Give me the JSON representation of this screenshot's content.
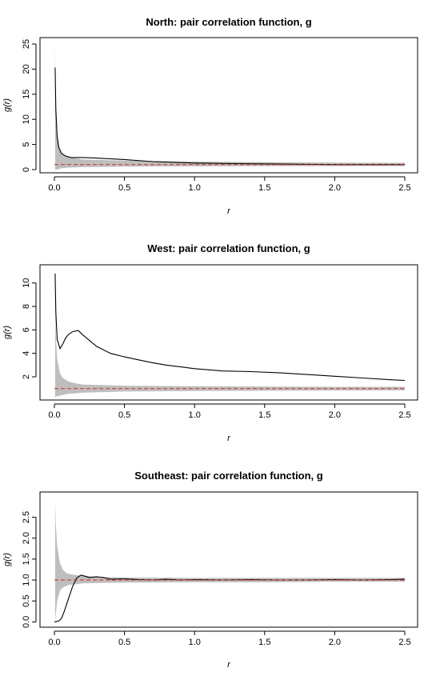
{
  "chart_data": [
    {
      "type": "line",
      "title": "North: pair correlation function, g",
      "xlabel": "r",
      "ylabel": "g(r)",
      "xlim": [
        0,
        2.5
      ],
      "ylim": [
        0,
        25
      ],
      "xticks": [
        0,
        0.5,
        1,
        1.5,
        2,
        2.5
      ],
      "xtick_labels": [
        "0.0",
        "0.5",
        "1.0",
        "1.5",
        "2.0",
        "2.5"
      ],
      "yticks": [
        0,
        5,
        10,
        15,
        20,
        25
      ],
      "ytick_labels": [
        "0",
        "5",
        "10",
        "15",
        "20",
        "25"
      ],
      "series": [
        {
          "role": "observed",
          "color": "#000000",
          "style": "solid",
          "x": [
            0.005,
            0.01,
            0.02,
            0.03,
            0.05,
            0.08,
            0.12,
            0.2,
            0.3,
            0.5,
            0.7,
            1.0,
            1.3,
            1.6,
            2.0,
            2.5
          ],
          "y": [
            20.3,
            12,
            6.5,
            4.5,
            3.2,
            2.7,
            2.4,
            2.4,
            2.3,
            2.0,
            1.6,
            1.3,
            1.2,
            1.1,
            1.0,
            1.0
          ]
        },
        {
          "role": "theoretical",
          "color": "#d22b2b",
          "style": "dashed",
          "x": [
            0,
            2.5
          ],
          "y": [
            1,
            1
          ]
        }
      ],
      "envelope": {
        "color": "#bebebe",
        "x": [
          0.005,
          0.01,
          0.02,
          0.04,
          0.06,
          0.1,
          0.2,
          0.5,
          1.0,
          1.5,
          2.0,
          2.5
        ],
        "upper": [
          24.5,
          12,
          7,
          4,
          3,
          2.5,
          2.0,
          1.8,
          1.6,
          1.5,
          1.4,
          1.35
        ],
        "lower": [
          0,
          0,
          0,
          0.2,
          0.3,
          0.4,
          0.5,
          0.6,
          0.65,
          0.7,
          0.7,
          0.7
        ]
      }
    },
    {
      "type": "line",
      "title": "West: pair correlation function, g",
      "xlabel": "r",
      "ylabel": "g(r)",
      "xlim": [
        0,
        2.5
      ],
      "ylim": [
        0.3,
        11
      ],
      "xticks": [
        0,
        0.5,
        1,
        1.5,
        2,
        2.5
      ],
      "xtick_labels": [
        "0.0",
        "0.5",
        "1.0",
        "1.5",
        "2.0",
        "2.5"
      ],
      "yticks": [
        2,
        4,
        6,
        8,
        10
      ],
      "ytick_labels": [
        "2",
        "4",
        "6",
        "8",
        "10"
      ],
      "series": [
        {
          "role": "observed",
          "color": "#000000",
          "style": "solid",
          "x": [
            0.005,
            0.01,
            0.02,
            0.04,
            0.06,
            0.08,
            0.1,
            0.13,
            0.17,
            0.2,
            0.25,
            0.3,
            0.4,
            0.5,
            0.6,
            0.7,
            0.8,
            0.9,
            1.0,
            1.2,
            1.4,
            1.6,
            1.8,
            2.0,
            2.2,
            2.4,
            2.5
          ],
          "y": [
            10.8,
            7.5,
            5.2,
            4.4,
            4.8,
            5.3,
            5.6,
            5.85,
            5.95,
            5.6,
            5.1,
            4.6,
            4.0,
            3.7,
            3.45,
            3.2,
            3.0,
            2.85,
            2.7,
            2.5,
            2.45,
            2.35,
            2.2,
            2.05,
            1.9,
            1.75,
            1.7
          ]
        },
        {
          "role": "theoretical",
          "color": "#d22b2b",
          "style": "dashed",
          "x": [
            0,
            2.5
          ],
          "y": [
            1,
            1
          ]
        }
      ],
      "envelope": {
        "color": "#bebebe",
        "x": [
          0.005,
          0.01,
          0.02,
          0.04,
          0.06,
          0.1,
          0.15,
          0.2,
          0.5,
          1.0,
          1.5,
          2.0,
          2.5
        ],
        "upper": [
          8.0,
          5.5,
          3.5,
          2.3,
          1.9,
          1.6,
          1.45,
          1.35,
          1.25,
          1.2,
          1.18,
          1.15,
          1.15
        ],
        "lower": [
          0.3,
          0.3,
          0.35,
          0.4,
          0.45,
          0.55,
          0.6,
          0.65,
          0.75,
          0.8,
          0.82,
          0.84,
          0.85
        ]
      }
    },
    {
      "type": "line",
      "title": "Southeast: pair correlation function, g",
      "xlabel": "r",
      "ylabel": "g(r)",
      "xlim": [
        0,
        2.5
      ],
      "ylim": [
        -0.05,
        2.95
      ],
      "xticks": [
        0,
        0.5,
        1,
        1.5,
        2,
        2.5
      ],
      "xtick_labels": [
        "0.0",
        "0.5",
        "1.0",
        "1.5",
        "2.0",
        "2.5"
      ],
      "yticks": [
        0,
        0.5,
        1,
        1.5,
        2,
        2.5
      ],
      "ytick_labels": [
        "0.0",
        "0.5",
        "1.0",
        "1.5",
        "2.0",
        "2.5"
      ],
      "series": [
        {
          "role": "observed",
          "color": "#000000",
          "style": "solid",
          "x": [
            0.0,
            0.03,
            0.05,
            0.07,
            0.1,
            0.13,
            0.16,
            0.19,
            0.22,
            0.25,
            0.3,
            0.35,
            0.4,
            0.5,
            0.6,
            0.7,
            0.8,
            0.9,
            1.0,
            1.2,
            1.4,
            1.6,
            1.8,
            2.0,
            2.2,
            2.4,
            2.5
          ],
          "y": [
            0.0,
            0.02,
            0.08,
            0.25,
            0.55,
            0.85,
            1.05,
            1.12,
            1.09,
            1.06,
            1.08,
            1.06,
            1.02,
            1.03,
            1.01,
            1.0,
            1.02,
            1.0,
            1.01,
            1.0,
            1.01,
            1.0,
            1.0,
            1.01,
            1.0,
            1.01,
            1.02
          ]
        },
        {
          "role": "theoretical",
          "color": "#d22b2b",
          "style": "dashed",
          "x": [
            0,
            2.5
          ],
          "y": [
            1,
            1
          ]
        }
      ],
      "envelope": {
        "color": "#bebebe",
        "x": [
          0.005,
          0.01,
          0.02,
          0.04,
          0.06,
          0.08,
          0.1,
          0.15,
          0.2,
          0.3,
          0.5,
          1.0,
          1.5,
          2.0,
          2.5
        ],
        "upper": [
          2.85,
          2.3,
          1.8,
          1.4,
          1.25,
          1.18,
          1.15,
          1.12,
          1.1,
          1.08,
          1.06,
          1.05,
          1.05,
          1.05,
          1.05
        ],
        "lower": [
          0.0,
          0.2,
          0.5,
          0.75,
          0.82,
          0.85,
          0.88,
          0.9,
          0.92,
          0.93,
          0.94,
          0.95,
          0.95,
          0.96,
          0.96
        ]
      }
    }
  ]
}
